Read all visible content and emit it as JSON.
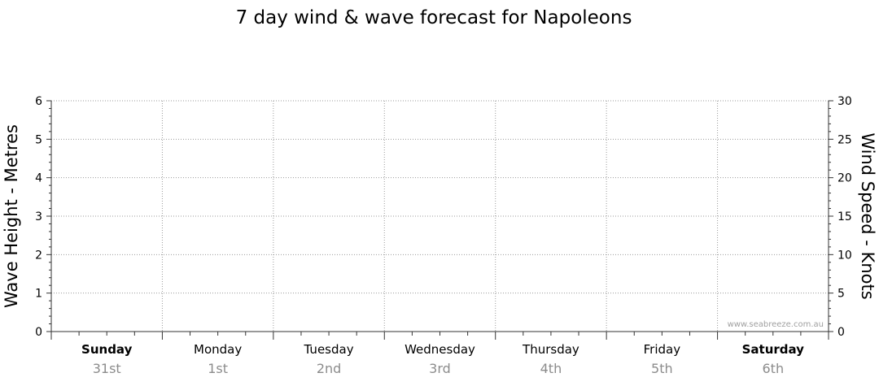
{
  "chart_data": {
    "type": "line",
    "title": "7 day wind & wave forecast for Napoleons",
    "ylabel": "Wave Height - Metres",
    "y2label": "Wind Speed - Knots",
    "ylim": [
      0,
      6
    ],
    "y2lim": [
      0,
      30
    ],
    "yticks": [
      "0",
      "1",
      "2",
      "3",
      "4",
      "5",
      "6"
    ],
    "y2ticks": [
      "0",
      "5",
      "10",
      "15",
      "20",
      "25",
      "30"
    ],
    "grid": true,
    "days": [
      {
        "day": "Sunday",
        "date": "31st",
        "weekend": true
      },
      {
        "day": "Monday",
        "date": "1st",
        "weekend": false
      },
      {
        "day": "Tuesday",
        "date": "2nd",
        "weekend": false
      },
      {
        "day": "Wednesday",
        "date": "3rd",
        "weekend": false
      },
      {
        "day": "Thursday",
        "date": "4th",
        "weekend": false
      },
      {
        "day": "Friday",
        "date": "5th",
        "weekend": false
      },
      {
        "day": "Saturday",
        "date": "6th",
        "weekend": true
      }
    ],
    "series": []
  },
  "watermark": "www.seabreeze.com.au"
}
